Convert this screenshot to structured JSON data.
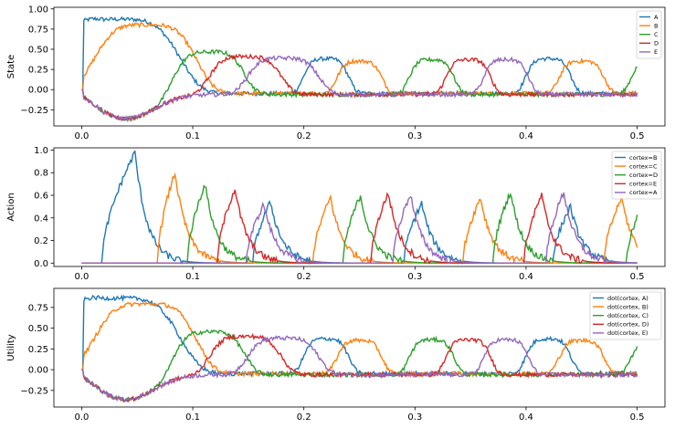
{
  "chart_data": [
    {
      "type": "line",
      "ylabel": "State",
      "xlim": [
        -0.025,
        0.525
      ],
      "ylim": [
        -0.45,
        1.02
      ],
      "xticks": [
        "0.0",
        "0.1",
        "0.2",
        "0.3",
        "0.4",
        "0.5"
      ],
      "yticks": [
        "−0.25",
        "0.00",
        "0.25",
        "0.50",
        "0.75",
        "1.00"
      ],
      "ytick_values": [
        -0.25,
        0,
        0.25,
        0.5,
        0.75,
        1.0
      ],
      "legend_position": "top-right",
      "series": [
        {
          "name": "A",
          "color": "#1f77b4",
          "start": 0.0,
          "period": 0.2,
          "peak1": 0.92,
          "peak_later": 0.43,
          "base": -0.08,
          "width": 0.06
        },
        {
          "name": "B",
          "color": "#ff7f0e",
          "start": 0.03,
          "period": 0.2,
          "peak1": 0.85,
          "peak_later": 0.4,
          "base": -0.08,
          "width": 0.05
        },
        {
          "name": "C",
          "color": "#2ca02c",
          "start": 0.095,
          "period": 0.2,
          "peak1": 0.53,
          "peak_later": 0.43,
          "base": -0.1,
          "width": 0.035
        },
        {
          "name": "D",
          "color": "#d62728",
          "start": 0.128,
          "period": 0.2,
          "peak1": 0.47,
          "peak_later": 0.43,
          "base": -0.1,
          "width": 0.035
        },
        {
          "name": "E",
          "color": "#9467bd",
          "start": 0.162,
          "period": 0.2,
          "peak1": 0.45,
          "peak_later": 0.43,
          "base": -0.1,
          "width": 0.035
        }
      ]
    },
    {
      "type": "line",
      "ylabel": "Action",
      "xlim": [
        -0.025,
        0.525
      ],
      "ylim": [
        -0.03,
        1.02
      ],
      "xticks": [
        "0.0",
        "0.1",
        "0.2",
        "0.3",
        "0.4",
        "0.5"
      ],
      "yticks": [
        "0.0",
        "0.2",
        "0.4",
        "0.6",
        "0.8",
        "1.0"
      ],
      "ytick_values": [
        0,
        0.2,
        0.4,
        0.6,
        0.8,
        1.0
      ],
      "legend_position": "top-right",
      "series": [
        {
          "name": "cortex=B",
          "color": "#1f77b4",
          "onsets": [
            0.018,
            0.154,
            0.29,
            0.424
          ],
          "peaks": [
            0.98,
            0.54,
            0.53,
            0.5
          ]
        },
        {
          "name": "cortex=C",
          "color": "#ff7f0e",
          "onsets": [
            0.068,
            0.208,
            0.343,
            0.47
          ],
          "peaks": [
            0.8,
            0.58,
            0.58,
            0.58
          ]
        },
        {
          "name": "cortex=D",
          "color": "#2ca02c",
          "onsets": [
            0.095,
            0.235,
            0.37,
            0.49
          ],
          "peaks": [
            0.7,
            0.6,
            0.63,
            0.53
          ]
        },
        {
          "name": "cortex=E",
          "color": "#d62728",
          "onsets": [
            0.122,
            0.26,
            0.398
          ],
          "peaks": [
            0.66,
            0.62,
            0.6
          ]
        },
        {
          "name": "cortex=A",
          "color": "#9467bd",
          "onsets": [
            0.148,
            0.28,
            0.418
          ],
          "peaks": [
            0.52,
            0.61,
            0.63
          ]
        }
      ]
    },
    {
      "type": "line",
      "ylabel": "Utility",
      "xlim": [
        -0.025,
        0.525
      ],
      "ylim": [
        -0.45,
        0.98
      ],
      "xticks": [
        "0.0",
        "0.1",
        "0.2",
        "0.3",
        "0.4",
        "0.5"
      ],
      "yticks": [
        "−0.25",
        "0.00",
        "0.25",
        "0.50",
        "0.75"
      ],
      "ytick_values": [
        -0.25,
        0,
        0.25,
        0.5,
        0.75
      ],
      "legend_position": "top-right",
      "series": [
        {
          "name": "dot(cortex, A)",
          "color": "#1f77b4",
          "start": 0.0,
          "period": 0.2,
          "peak1": 0.91,
          "peak_later": 0.42,
          "base": -0.08,
          "width": 0.06
        },
        {
          "name": "dot(cortex, B)",
          "color": "#ff7f0e",
          "start": 0.03,
          "period": 0.2,
          "peak1": 0.84,
          "peak_later": 0.4,
          "base": -0.08,
          "width": 0.05
        },
        {
          "name": "dot(cortex, C)",
          "color": "#2ca02c",
          "start": 0.095,
          "period": 0.2,
          "peak1": 0.52,
          "peak_later": 0.42,
          "base": -0.1,
          "width": 0.035
        },
        {
          "name": "dot(cortex, D)",
          "color": "#d62728",
          "start": 0.128,
          "period": 0.2,
          "peak1": 0.46,
          "peak_later": 0.42,
          "base": -0.1,
          "width": 0.035
        },
        {
          "name": "dot(cortex, E)",
          "color": "#9467bd",
          "start": 0.162,
          "period": 0.2,
          "peak1": 0.44,
          "peak_later": 0.42,
          "base": -0.1,
          "width": 0.035
        }
      ]
    }
  ]
}
